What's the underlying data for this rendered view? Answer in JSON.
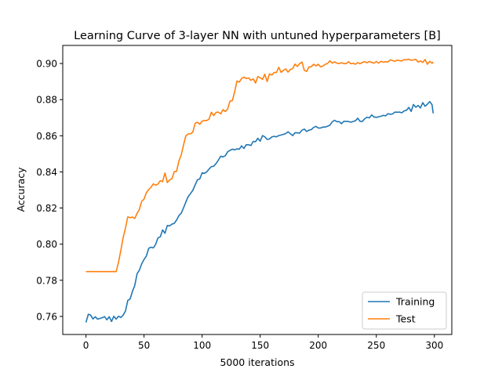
{
  "chart_data": {
    "type": "line",
    "title": "Learning Curve of 3-layer NN with untuned hyperparameters [B]",
    "xlabel": "5000 iterations",
    "ylabel": "Accuracy",
    "xlim": [
      -20,
      315
    ],
    "ylim": [
      0.75,
      0.91
    ],
    "x_ticks": [
      0,
      50,
      100,
      150,
      200,
      250,
      300
    ],
    "x_tick_labels": [
      "0",
      "50",
      "100",
      "150",
      "200",
      "250",
      "300"
    ],
    "y_ticks": [
      0.76,
      0.78,
      0.8,
      0.82,
      0.84,
      0.86,
      0.88,
      0.9
    ],
    "y_tick_labels": [
      "0.76",
      "0.78",
      "0.80",
      "0.82",
      "0.84",
      "0.86",
      "0.88",
      "0.90"
    ],
    "grid": false,
    "legend_position": "lower-right",
    "series": [
      {
        "name": "Training",
        "color": "#1f77b4",
        "x": [
          0,
          2,
          4,
          6,
          8,
          10,
          12,
          14,
          16,
          18,
          20,
          22,
          24,
          26,
          28,
          30,
          32,
          34,
          36,
          38,
          40,
          42,
          44,
          46,
          48,
          50,
          52,
          54,
          56,
          58,
          60,
          62,
          64,
          66,
          68,
          70,
          72,
          74,
          76,
          78,
          80,
          82,
          84,
          86,
          88,
          90,
          92,
          94,
          96,
          98,
          100,
          102,
          104,
          106,
          108,
          110,
          112,
          114,
          116,
          118,
          120,
          122,
          124,
          126,
          128,
          130,
          132,
          134,
          136,
          138,
          140,
          142,
          144,
          146,
          148,
          150,
          152,
          154,
          156,
          158,
          160,
          162,
          164,
          166,
          168,
          170,
          172,
          174,
          176,
          178,
          180,
          182,
          184,
          186,
          188,
          190,
          192,
          194,
          196,
          198,
          200,
          202,
          204,
          206,
          208,
          210,
          212,
          214,
          216,
          218,
          220,
          222,
          224,
          226,
          228,
          230,
          232,
          234,
          236,
          238,
          240,
          242,
          244,
          246,
          248,
          250,
          252,
          254,
          256,
          258,
          260,
          262,
          264,
          266,
          268,
          270,
          272,
          274,
          276,
          278,
          280,
          282,
          284,
          286,
          288,
          290,
          292,
          294,
          296,
          298,
          299
        ],
        "values": [
          0.7567,
          0.7612,
          0.7608,
          0.7586,
          0.7598,
          0.7585,
          0.7589,
          0.7593,
          0.7599,
          0.7581,
          0.7598,
          0.7572,
          0.7601,
          0.7585,
          0.7601,
          0.7594,
          0.7607,
          0.763,
          0.7688,
          0.7697,
          0.7738,
          0.7771,
          0.7837,
          0.7856,
          0.7892,
          0.7915,
          0.7934,
          0.7977,
          0.7983,
          0.7979,
          0.7999,
          0.8034,
          0.8041,
          0.8079,
          0.806,
          0.8103,
          0.8101,
          0.8111,
          0.8115,
          0.8133,
          0.8158,
          0.8171,
          0.8201,
          0.8233,
          0.8263,
          0.828,
          0.8298,
          0.8328,
          0.8356,
          0.8361,
          0.8395,
          0.8392,
          0.84,
          0.8416,
          0.8429,
          0.8432,
          0.8446,
          0.8465,
          0.8487,
          0.8483,
          0.849,
          0.8511,
          0.8519,
          0.8526,
          0.8522,
          0.8527,
          0.8526,
          0.8544,
          0.853,
          0.855,
          0.855,
          0.8546,
          0.8569,
          0.8567,
          0.8586,
          0.857,
          0.8601,
          0.8594,
          0.858,
          0.8582,
          0.8593,
          0.8597,
          0.8594,
          0.8601,
          0.8604,
          0.8608,
          0.8612,
          0.8622,
          0.8611,
          0.8601,
          0.8617,
          0.8616,
          0.8615,
          0.8631,
          0.8637,
          0.8624,
          0.8631,
          0.8634,
          0.8646,
          0.8652,
          0.8643,
          0.8643,
          0.8648,
          0.8648,
          0.8653,
          0.8658,
          0.8677,
          0.8686,
          0.8678,
          0.8678,
          0.8667,
          0.868,
          0.868,
          0.8679,
          0.8675,
          0.8679,
          0.8683,
          0.8697,
          0.868,
          0.868,
          0.8694,
          0.8703,
          0.8699,
          0.8715,
          0.8704,
          0.8702,
          0.8705,
          0.8708,
          0.8713,
          0.871,
          0.8722,
          0.8719,
          0.8721,
          0.8731,
          0.873,
          0.8731,
          0.8727,
          0.8738,
          0.8741,
          0.8757,
          0.8735,
          0.8773,
          0.8758,
          0.8768,
          0.8754,
          0.8783,
          0.8763,
          0.8775,
          0.8789,
          0.8772,
          0.8724
        ]
      },
      {
        "name": "Test",
        "color": "#ff7f0e",
        "x": [
          0,
          2,
          4,
          6,
          8,
          10,
          12,
          14,
          16,
          18,
          20,
          22,
          24,
          26,
          28,
          30,
          32,
          34,
          36,
          38,
          40,
          42,
          44,
          46,
          48,
          50,
          52,
          54,
          56,
          58,
          60,
          62,
          64,
          66,
          68,
          70,
          72,
          74,
          76,
          78,
          80,
          82,
          84,
          86,
          88,
          90,
          92,
          94,
          96,
          98,
          100,
          102,
          104,
          106,
          108,
          110,
          112,
          114,
          116,
          118,
          120,
          122,
          124,
          126,
          128,
          130,
          132,
          134,
          136,
          138,
          140,
          142,
          144,
          146,
          148,
          150,
          152,
          154,
          156,
          158,
          160,
          162,
          164,
          166,
          168,
          170,
          172,
          174,
          176,
          178,
          180,
          182,
          184,
          186,
          188,
          190,
          192,
          194,
          196,
          198,
          200,
          202,
          204,
          206,
          208,
          210,
          212,
          214,
          216,
          218,
          220,
          222,
          224,
          226,
          228,
          230,
          232,
          234,
          236,
          238,
          240,
          242,
          244,
          246,
          248,
          250,
          252,
          254,
          256,
          258,
          260,
          262,
          264,
          266,
          268,
          270,
          272,
          274,
          276,
          278,
          280,
          282,
          284,
          286,
          288,
          290,
          292,
          294,
          296,
          298,
          299
        ],
        "values": [
          0.7848,
          0.7848,
          0.7848,
          0.7848,
          0.7848,
          0.7848,
          0.7848,
          0.7848,
          0.7848,
          0.7848,
          0.7848,
          0.7848,
          0.7848,
          0.7848,
          0.79,
          0.7964,
          0.8037,
          0.809,
          0.8151,
          0.8147,
          0.815,
          0.8142,
          0.8171,
          0.8192,
          0.8238,
          0.8249,
          0.8285,
          0.8302,
          0.8315,
          0.8334,
          0.8326,
          0.8333,
          0.8351,
          0.8346,
          0.8394,
          0.8341,
          0.8355,
          0.8362,
          0.8401,
          0.8403,
          0.846,
          0.8493,
          0.8549,
          0.8599,
          0.861,
          0.8611,
          0.862,
          0.8669,
          0.8675,
          0.8664,
          0.8681,
          0.8684,
          0.8684,
          0.8693,
          0.873,
          0.8712,
          0.8729,
          0.8731,
          0.8721,
          0.8745,
          0.8734,
          0.8748,
          0.8792,
          0.8794,
          0.8842,
          0.8903,
          0.8897,
          0.8917,
          0.8925,
          0.8917,
          0.892,
          0.8907,
          0.8915,
          0.8892,
          0.8928,
          0.8921,
          0.8912,
          0.8941,
          0.89,
          0.8942,
          0.8936,
          0.895,
          0.895,
          0.8979,
          0.8951,
          0.8962,
          0.897,
          0.8952,
          0.8967,
          0.8972,
          0.8997,
          0.8984,
          0.8999,
          0.9008,
          0.8962,
          0.8956,
          0.8981,
          0.8982,
          0.8996,
          0.8987,
          0.8996,
          0.8981,
          0.8986,
          0.8996,
          0.9,
          0.9015,
          0.9002,
          0.9009,
          0.9002,
          0.9,
          0.9004,
          0.9,
          0.8999,
          0.901,
          0.8999,
          0.9001,
          0.8996,
          0.9005,
          0.8999,
          0.9006,
          0.901,
          0.9004,
          0.9011,
          0.9006,
          0.9002,
          0.9011,
          0.9002,
          0.9012,
          0.9007,
          0.901,
          0.9008,
          0.902,
          0.9016,
          0.9012,
          0.9019,
          0.9016,
          0.9014,
          0.9022,
          0.902,
          0.9024,
          0.9018,
          0.902,
          0.9023,
          0.9008,
          0.9014,
          0.9006,
          0.9022,
          0.8996,
          0.9012,
          0.9001,
          0.9008
        ]
      }
    ]
  }
}
